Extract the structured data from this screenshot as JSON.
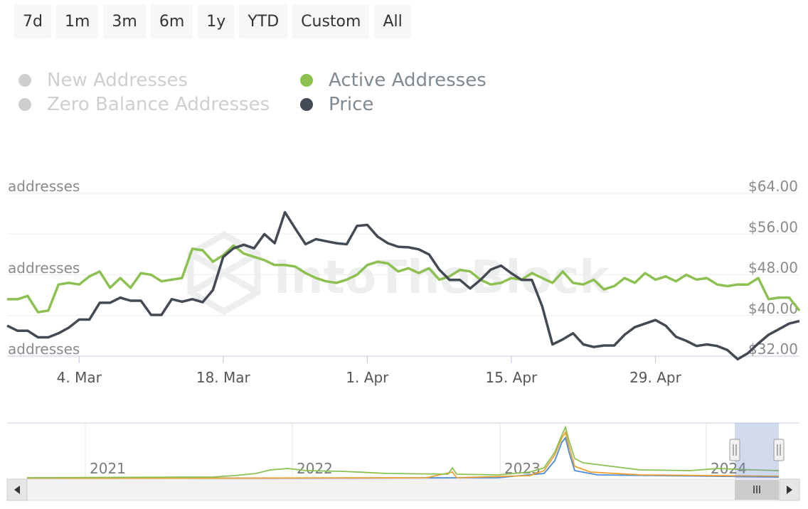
{
  "range_buttons": [
    "7d",
    "1m",
    "3m",
    "6m",
    "1y",
    "YTD",
    "Custom",
    "All"
  ],
  "legend": [
    {
      "label": "New Addresses",
      "enabled": false,
      "color": "#cccccc"
    },
    {
      "label": "Zero Balance Addresses",
      "enabled": false,
      "color": "#cccccc"
    },
    {
      "label": "Active Addresses",
      "enabled": true,
      "color": "#8cc152"
    },
    {
      "label": "Price",
      "enabled": true,
      "color": "#434a54"
    }
  ],
  "watermark": "IntoTheBlock",
  "chart_data": {
    "type": "line",
    "left_axis_labels": [
      "addresses",
      "addresses",
      "addresses"
    ],
    "right_axis": {
      "min": 32,
      "max": 64,
      "ticks": [
        "$64.00",
        "$56.00",
        "$48.00",
        "$40.00",
        "$32.00"
      ]
    },
    "x_ticks": [
      {
        "label": "4. Mar",
        "index": 7
      },
      {
        "label": "18. Mar",
        "index": 21
      },
      {
        "label": "1. Apr",
        "index": 35
      },
      {
        "label": "15. Apr",
        "index": 49
      },
      {
        "label": "29. Apr",
        "index": 63
      }
    ],
    "series": [
      {
        "name": "Active Addresses",
        "color": "#8cc152",
        "axis": "left",
        "scale": [
          0,
          1
        ],
        "values": [
          0.35,
          0.35,
          0.37,
          0.27,
          0.28,
          0.44,
          0.45,
          0.44,
          0.49,
          0.52,
          0.42,
          0.48,
          0.42,
          0.51,
          0.5,
          0.46,
          0.47,
          0.48,
          0.66,
          0.65,
          0.58,
          0.62,
          0.68,
          0.63,
          0.61,
          0.59,
          0.56,
          0.56,
          0.55,
          0.51,
          0.48,
          0.46,
          0.45,
          0.47,
          0.5,
          0.56,
          0.58,
          0.57,
          0.52,
          0.54,
          0.51,
          0.54,
          0.47,
          0.49,
          0.53,
          0.52,
          0.47,
          0.44,
          0.45,
          0.48,
          0.47,
          0.51,
          0.48,
          0.45,
          0.52,
          0.45,
          0.44,
          0.47,
          0.41,
          0.43,
          0.48,
          0.45,
          0.51,
          0.47,
          0.49,
          0.46,
          0.5,
          0.47,
          0.48,
          0.44,
          0.43,
          0.44,
          0.44,
          0.48,
          0.35,
          0.36,
          0.36,
          0.28
        ]
      },
      {
        "name": "Price",
        "color": "#434a54",
        "axis": "right",
        "values": [
          38.0,
          37.0,
          37.0,
          35.7,
          35.7,
          36.5,
          37.6,
          39.2,
          39.2,
          42.5,
          42.5,
          43.5,
          42.9,
          42.9,
          40.1,
          40.1,
          43.2,
          42.7,
          43.2,
          42.6,
          45.0,
          51.5,
          53.2,
          53.9,
          53.2,
          56.0,
          54.2,
          60.3,
          57.1,
          54.0,
          55.0,
          54.6,
          54.2,
          54.0,
          57.6,
          57.8,
          55.5,
          54.2,
          53.5,
          53.4,
          53.0,
          52.0,
          49.0,
          47.0,
          47.0,
          45.3,
          47.0,
          49.0,
          49.8,
          48.3,
          47.0,
          47.0,
          41.8,
          34.3,
          35.3,
          36.5,
          34.3,
          33.8,
          34.1,
          34.1,
          36.2,
          37.7,
          38.4,
          39.1,
          38.0,
          35.8,
          35.0,
          34.0,
          34.3,
          34.0,
          33.2,
          31.4,
          32.6,
          34.5,
          36.2,
          37.3,
          38.4,
          38.9
        ]
      }
    ],
    "navigator": {
      "year_labels": [
        "2021",
        "2022",
        "2023",
        "2024"
      ],
      "series_colors": [
        "#8cc152",
        "#f0a030",
        "#4a89dc"
      ]
    }
  }
}
